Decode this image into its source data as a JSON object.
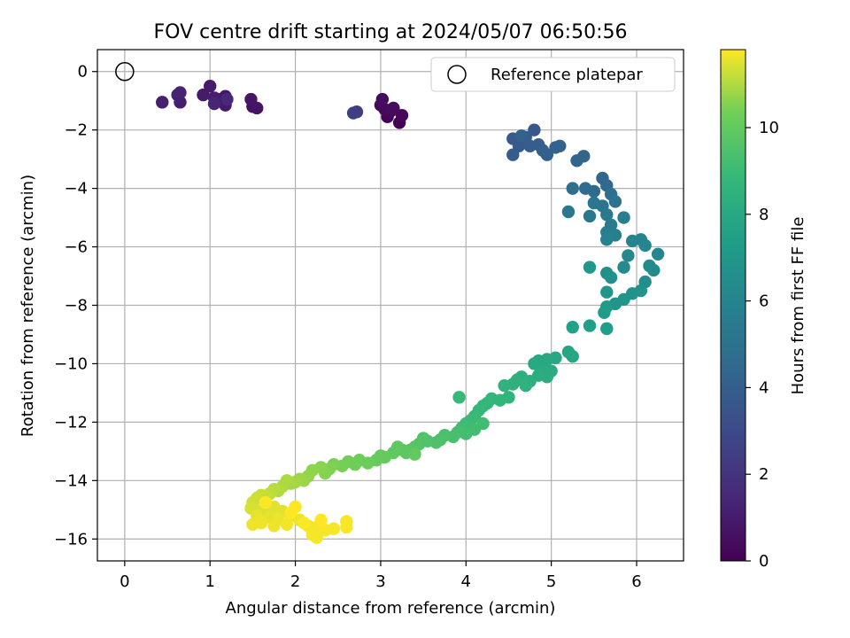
{
  "chart_data": {
    "type": "scatter",
    "title": "FOV centre drift starting at 2024/05/07 06:50:56",
    "xlabel": "Angular distance from reference (arcmin)",
    "ylabel": "Rotation from reference (arcmin)",
    "xlim": [
      -0.32,
      6.55
    ],
    "ylim": [
      -16.75,
      0.75
    ],
    "xticks": [
      0,
      1,
      2,
      3,
      4,
      5,
      6
    ],
    "yticks": [
      0,
      -2,
      -4,
      -6,
      -8,
      -10,
      -12,
      -14,
      -16
    ],
    "xtick_labels": [
      "0",
      "1",
      "2",
      "3",
      "4",
      "5",
      "6"
    ],
    "ytick_labels": [
      "0",
      "−2",
      "−4",
      "−6",
      "−8",
      "−10",
      "−12",
      "−14",
      "−16"
    ],
    "grid": true,
    "legend": {
      "placement": "top-right",
      "entries": [
        "Reference platepar"
      ]
    },
    "reference_point": {
      "x": 0,
      "y": 0,
      "marker": "open-circle"
    },
    "colorbar": {
      "label": "Hours from first FF file",
      "colormap": "viridis",
      "range": [
        0,
        11.8
      ],
      "ticks": [
        0,
        2,
        4,
        6,
        8,
        10
      ],
      "tick_labels": [
        "0",
        "2",
        "4",
        "6",
        "8",
        "10"
      ]
    },
    "points": [
      {
        "x": 3.22,
        "y": -1.75,
        "t": 0.1
      },
      {
        "x": 3.08,
        "y": -1.55,
        "t": 0.15
      },
      {
        "x": 3.12,
        "y": -1.35,
        "t": 0.2
      },
      {
        "x": 3.25,
        "y": -1.5,
        "t": 0.25
      },
      {
        "x": 3.0,
        "y": -1.15,
        "t": 0.3
      },
      {
        "x": 3.05,
        "y": -1.3,
        "t": 0.35
      },
      {
        "x": 3.15,
        "y": -1.25,
        "t": 0.4
      },
      {
        "x": 3.02,
        "y": -0.95,
        "t": 0.45
      },
      {
        "x": 1.5,
        "y": -1.2,
        "t": 0.6
      },
      {
        "x": 1.55,
        "y": -1.25,
        "t": 0.7
      },
      {
        "x": 1.48,
        "y": -0.95,
        "t": 0.75
      },
      {
        "x": 1.18,
        "y": -0.85,
        "t": 0.8
      },
      {
        "x": 1.12,
        "y": -0.95,
        "t": 0.85
      },
      {
        "x": 1.18,
        "y": -1.15,
        "t": 0.9
      },
      {
        "x": 1.0,
        "y": -0.5,
        "t": 0.95
      },
      {
        "x": 0.92,
        "y": -0.8,
        "t": 1.0
      },
      {
        "x": 1.05,
        "y": -0.9,
        "t": 1.05
      },
      {
        "x": 0.65,
        "y": -1.05,
        "t": 1.1
      },
      {
        "x": 0.44,
        "y": -1.05,
        "t": 1.15
      },
      {
        "x": 0.62,
        "y": -0.8,
        "t": 1.2
      },
      {
        "x": 0.65,
        "y": -0.72,
        "t": 1.3
      },
      {
        "x": 1.05,
        "y": -1.1,
        "t": 1.4
      },
      {
        "x": 1.2,
        "y": -0.95,
        "t": 1.5
      },
      {
        "x": 2.72,
        "y": -1.38,
        "t": 2.4
      },
      {
        "x": 2.68,
        "y": -1.42,
        "t": 2.5
      },
      {
        "x": 4.8,
        "y": -2.0,
        "t": 3.6
      },
      {
        "x": 4.55,
        "y": -2.3,
        "t": 3.7
      },
      {
        "x": 4.62,
        "y": -2.55,
        "t": 3.75
      },
      {
        "x": 4.55,
        "y": -2.85,
        "t": 3.8
      },
      {
        "x": 4.7,
        "y": -2.25,
        "t": 3.85
      },
      {
        "x": 4.75,
        "y": -2.55,
        "t": 3.9
      },
      {
        "x": 4.85,
        "y": -2.5,
        "t": 3.95
      },
      {
        "x": 4.9,
        "y": -2.7,
        "t": 4.0
      },
      {
        "x": 4.95,
        "y": -2.85,
        "t": 4.05
      },
      {
        "x": 5.05,
        "y": -2.6,
        "t": 4.1
      },
      {
        "x": 5.1,
        "y": -2.55,
        "t": 4.15
      },
      {
        "x": 4.65,
        "y": -2.2,
        "t": 4.2
      },
      {
        "x": 5.38,
        "y": -2.9,
        "t": 4.25
      },
      {
        "x": 5.3,
        "y": -3.05,
        "t": 4.3
      },
      {
        "x": 5.6,
        "y": -3.65,
        "t": 4.35
      },
      {
        "x": 5.65,
        "y": -3.9,
        "t": 4.5
      },
      {
        "x": 5.5,
        "y": -4.1,
        "t": 4.6
      },
      {
        "x": 5.4,
        "y": -4.0,
        "t": 4.7
      },
      {
        "x": 5.25,
        "y": -4.0,
        "t": 4.8
      },
      {
        "x": 5.7,
        "y": -4.2,
        "t": 4.9
      },
      {
        "x": 5.75,
        "y": -4.45,
        "t": 5.0
      },
      {
        "x": 5.6,
        "y": -4.6,
        "t": 5.1
      },
      {
        "x": 5.5,
        "y": -4.5,
        "t": 5.2
      },
      {
        "x": 5.2,
        "y": -4.8,
        "t": 5.25
      },
      {
        "x": 5.45,
        "y": -4.95,
        "t": 5.3
      },
      {
        "x": 5.65,
        "y": -4.9,
        "t": 5.4
      },
      {
        "x": 5.7,
        "y": -5.25,
        "t": 5.5
      },
      {
        "x": 5.65,
        "y": -5.5,
        "t": 5.6
      },
      {
        "x": 5.85,
        "y": -5.0,
        "t": 5.7
      },
      {
        "x": 5.75,
        "y": -5.6,
        "t": 5.8
      },
      {
        "x": 5.65,
        "y": -5.75,
        "t": 5.9
      },
      {
        "x": 5.95,
        "y": -5.8,
        "t": 6.0
      },
      {
        "x": 6.05,
        "y": -5.75,
        "t": 6.05
      },
      {
        "x": 6.1,
        "y": -5.95,
        "t": 6.1
      },
      {
        "x": 6.25,
        "y": -6.25,
        "t": 6.15
      },
      {
        "x": 5.9,
        "y": -6.3,
        "t": 6.2
      },
      {
        "x": 5.85,
        "y": -6.7,
        "t": 6.3
      },
      {
        "x": 6.15,
        "y": -6.65,
        "t": 6.35
      },
      {
        "x": 6.2,
        "y": -6.8,
        "t": 6.4
      },
      {
        "x": 6.1,
        "y": -7.2,
        "t": 6.5
      },
      {
        "x": 5.65,
        "y": -6.9,
        "t": 6.6
      },
      {
        "x": 5.7,
        "y": -7.05,
        "t": 6.7
      },
      {
        "x": 6.05,
        "y": -7.5,
        "t": 6.75
      },
      {
        "x": 5.95,
        "y": -7.6,
        "t": 6.8
      },
      {
        "x": 5.85,
        "y": -7.8,
        "t": 6.85
      },
      {
        "x": 5.75,
        "y": -7.95,
        "t": 6.9
      },
      {
        "x": 5.65,
        "y": -7.55,
        "t": 7.0
      },
      {
        "x": 5.45,
        "y": -6.7,
        "t": 7.1
      },
      {
        "x": 5.65,
        "y": -8.05,
        "t": 7.2
      },
      {
        "x": 5.62,
        "y": -8.25,
        "t": 7.3
      },
      {
        "x": 5.65,
        "y": -8.8,
        "t": 7.4
      },
      {
        "x": 5.45,
        "y": -8.7,
        "t": 7.5
      },
      {
        "x": 5.25,
        "y": -8.75,
        "t": 7.6
      },
      {
        "x": 5.2,
        "y": -9.6,
        "t": 7.8
      },
      {
        "x": 5.25,
        "y": -9.75,
        "t": 7.85
      },
      {
        "x": 5.05,
        "y": -9.8,
        "t": 7.9
      },
      {
        "x": 4.95,
        "y": -9.85,
        "t": 7.95
      },
      {
        "x": 4.85,
        "y": -9.9,
        "t": 8.0
      },
      {
        "x": 4.8,
        "y": -10.0,
        "t": 8.05
      },
      {
        "x": 4.9,
        "y": -10.2,
        "t": 8.1
      },
      {
        "x": 5.0,
        "y": -10.25,
        "t": 8.15
      },
      {
        "x": 4.95,
        "y": -10.45,
        "t": 8.2
      },
      {
        "x": 4.85,
        "y": -10.4,
        "t": 8.25
      },
      {
        "x": 4.75,
        "y": -10.6,
        "t": 8.3
      },
      {
        "x": 4.65,
        "y": -10.45,
        "t": 8.35
      },
      {
        "x": 4.6,
        "y": -10.55,
        "t": 8.4
      },
      {
        "x": 4.55,
        "y": -10.7,
        "t": 8.45
      },
      {
        "x": 4.45,
        "y": -10.75,
        "t": 8.5
      },
      {
        "x": 4.7,
        "y": -10.75,
        "t": 8.55
      },
      {
        "x": 4.5,
        "y": -11.15,
        "t": 8.6
      },
      {
        "x": 4.4,
        "y": -11.25,
        "t": 8.65
      },
      {
        "x": 4.3,
        "y": -11.2,
        "t": 8.7
      },
      {
        "x": 4.25,
        "y": -11.35,
        "t": 8.75
      },
      {
        "x": 4.2,
        "y": -11.45,
        "t": 8.8
      },
      {
        "x": 4.15,
        "y": -11.6,
        "t": 8.85
      },
      {
        "x": 3.92,
        "y": -11.15,
        "t": 8.9
      },
      {
        "x": 4.1,
        "y": -11.8,
        "t": 8.95
      },
      {
        "x": 4.05,
        "y": -11.95,
        "t": 9.0
      },
      {
        "x": 4.0,
        "y": -12.05,
        "t": 9.05
      },
      {
        "x": 3.95,
        "y": -12.2,
        "t": 9.1
      },
      {
        "x": 4.2,
        "y": -12.05,
        "t": 9.15
      },
      {
        "x": 4.1,
        "y": -12.25,
        "t": 9.2
      },
      {
        "x": 4.0,
        "y": -12.4,
        "t": 9.25
      },
      {
        "x": 3.9,
        "y": -12.35,
        "t": 9.3
      },
      {
        "x": 3.85,
        "y": -12.5,
        "t": 9.35
      },
      {
        "x": 3.75,
        "y": -12.45,
        "t": 9.4
      },
      {
        "x": 3.7,
        "y": -12.6,
        "t": 9.45
      },
      {
        "x": 3.65,
        "y": -12.7,
        "t": 9.5
      },
      {
        "x": 3.55,
        "y": -12.65,
        "t": 9.55
      },
      {
        "x": 3.5,
        "y": -12.55,
        "t": 9.6
      },
      {
        "x": 3.45,
        "y": -12.75,
        "t": 9.65
      },
      {
        "x": 3.4,
        "y": -12.85,
        "t": 9.7
      },
      {
        "x": 3.35,
        "y": -12.95,
        "t": 9.75
      },
      {
        "x": 3.3,
        "y": -13.05,
        "t": 9.8
      },
      {
        "x": 3.25,
        "y": -12.95,
        "t": 9.85
      },
      {
        "x": 3.2,
        "y": -12.85,
        "t": 9.9
      },
      {
        "x": 3.15,
        "y": -13.05,
        "t": 9.95
      },
      {
        "x": 3.4,
        "y": -13.1,
        "t": 10.0
      },
      {
        "x": 3.05,
        "y": -13.2,
        "t": 10.05
      },
      {
        "x": 3.0,
        "y": -13.15,
        "t": 10.1
      },
      {
        "x": 2.95,
        "y": -13.3,
        "t": 10.15
      },
      {
        "x": 2.85,
        "y": -13.4,
        "t": 10.2
      },
      {
        "x": 2.75,
        "y": -13.3,
        "t": 10.25
      },
      {
        "x": 2.7,
        "y": -13.45,
        "t": 10.3
      },
      {
        "x": 2.62,
        "y": -13.35,
        "t": 10.35
      },
      {
        "x": 2.55,
        "y": -13.5,
        "t": 10.4
      },
      {
        "x": 2.45,
        "y": -13.45,
        "t": 10.45
      },
      {
        "x": 2.4,
        "y": -13.6,
        "t": 10.5
      },
      {
        "x": 2.35,
        "y": -13.75,
        "t": 10.55
      },
      {
        "x": 2.3,
        "y": -13.55,
        "t": 10.6
      },
      {
        "x": 2.2,
        "y": -13.65,
        "t": 10.65
      },
      {
        "x": 2.15,
        "y": -13.85,
        "t": 10.7
      },
      {
        "x": 2.1,
        "y": -14.0,
        "t": 10.75
      },
      {
        "x": 2.05,
        "y": -13.95,
        "t": 10.8
      },
      {
        "x": 2.0,
        "y": -14.05,
        "t": 10.85
      },
      {
        "x": 1.95,
        "y": -14.1,
        "t": 10.9
      },
      {
        "x": 1.9,
        "y": -14.0,
        "t": 10.95
      },
      {
        "x": 1.85,
        "y": -14.2,
        "t": 11.0
      },
      {
        "x": 1.8,
        "y": -14.35,
        "t": 11.05
      },
      {
        "x": 1.75,
        "y": -14.3,
        "t": 11.1
      },
      {
        "x": 1.7,
        "y": -14.45,
        "t": 11.15
      },
      {
        "x": 1.65,
        "y": -14.55,
        "t": 11.2
      },
      {
        "x": 1.6,
        "y": -14.5,
        "t": 11.25
      },
      {
        "x": 1.55,
        "y": -14.6,
        "t": 11.3
      },
      {
        "x": 1.5,
        "y": -14.75,
        "t": 11.35
      },
      {
        "x": 1.48,
        "y": -14.95,
        "t": 11.4
      },
      {
        "x": 1.62,
        "y": -15.0,
        "t": 11.45
      },
      {
        "x": 1.75,
        "y": -14.9,
        "t": 11.5
      },
      {
        "x": 1.85,
        "y": -15.05,
        "t": 11.5
      },
      {
        "x": 1.55,
        "y": -15.2,
        "t": 11.55
      },
      {
        "x": 1.7,
        "y": -15.25,
        "t": 11.55
      },
      {
        "x": 1.8,
        "y": -15.3,
        "t": 11.6
      },
      {
        "x": 1.95,
        "y": -15.2,
        "t": 11.6
      },
      {
        "x": 2.05,
        "y": -15.35,
        "t": 11.6
      },
      {
        "x": 1.6,
        "y": -15.45,
        "t": 11.65
      },
      {
        "x": 1.5,
        "y": -15.5,
        "t": 11.65
      },
      {
        "x": 1.75,
        "y": -15.55,
        "t": 11.65
      },
      {
        "x": 1.9,
        "y": -15.5,
        "t": 11.7
      },
      {
        "x": 2.15,
        "y": -15.55,
        "t": 11.7
      },
      {
        "x": 2.25,
        "y": -15.6,
        "t": 11.7
      },
      {
        "x": 2.35,
        "y": -15.7,
        "t": 11.72
      },
      {
        "x": 2.2,
        "y": -15.85,
        "t": 11.72
      },
      {
        "x": 2.25,
        "y": -15.95,
        "t": 11.74
      },
      {
        "x": 2.45,
        "y": -15.65,
        "t": 11.74
      },
      {
        "x": 2.6,
        "y": -15.6,
        "t": 11.76
      },
      {
        "x": 2.6,
        "y": -15.4,
        "t": 11.76
      },
      {
        "x": 2.1,
        "y": -15.45,
        "t": 11.78
      },
      {
        "x": 2.0,
        "y": -14.9,
        "t": 11.78
      },
      {
        "x": 1.95,
        "y": -15.1,
        "t": 11.8
      },
      {
        "x": 1.65,
        "y": -14.75,
        "t": 11.8
      },
      {
        "x": 2.3,
        "y": -15.35,
        "t": 11.8
      }
    ]
  }
}
